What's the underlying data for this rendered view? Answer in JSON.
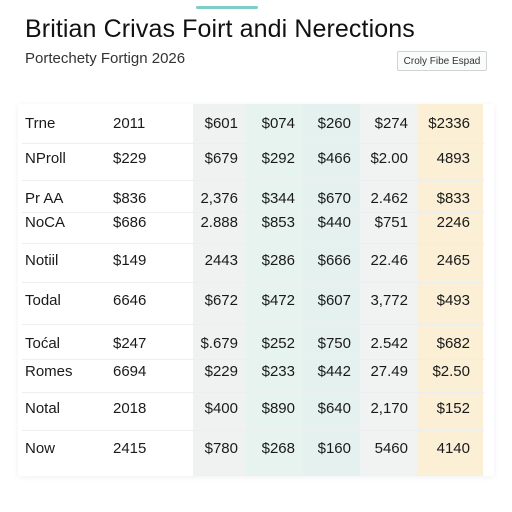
{
  "header": {
    "title": "Britian Crivas Foirt andi Nerections",
    "subtitle": "Portechety Fortign 2026",
    "button_label": "Croly Fibe Espad"
  },
  "colors": {
    "accent": "#7ecdc8",
    "highlight_column": "#fbefd6",
    "mint_column": "#e7f3ef"
  },
  "table": {
    "rows": [
      [
        "Trne",
        "2011",
        "$601",
        "$074",
        "$260",
        "$274",
        "$2336"
      ],
      [
        "NProll",
        "$229",
        "$679",
        "$292",
        "$466",
        "$2.00",
        "4893"
      ],
      [
        "Pr AA",
        "$836",
        "2,376",
        "$344",
        "$670",
        "2.462",
        "$833"
      ],
      [
        "NoCA",
        "$686",
        "2.888",
        "$853",
        "$440",
        "$751",
        "2246"
      ],
      [
        "Notiil",
        "$149",
        "2443",
        "$286",
        "$666",
        "22.46",
        "2465"
      ],
      [
        "Todal",
        "6646",
        "$672",
        "$472",
        "$607",
        "3,772",
        "$493"
      ],
      [
        "Toćal",
        "$247",
        "$.679",
        "$252",
        "$750",
        "2.542",
        "$682"
      ],
      [
        "Romes",
        "6694",
        "$229",
        "$233",
        "$442",
        "27.49",
        "$2.50"
      ],
      [
        "Notal",
        "2018",
        "$400",
        "$890",
        "$640",
        "2,170",
        "$152"
      ],
      [
        "Now",
        "2415",
        "$780",
        "$268",
        "$160",
        "5460",
        "4140"
      ]
    ]
  }
}
